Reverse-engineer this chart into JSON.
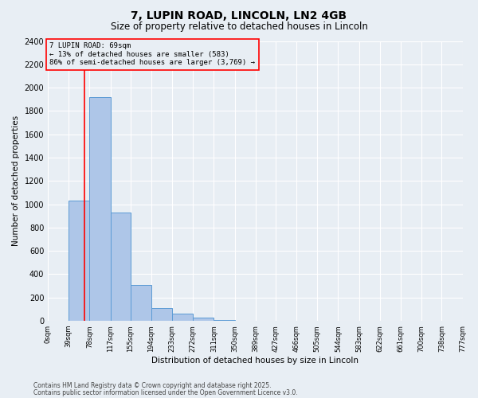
{
  "title": "7, LUPIN ROAD, LINCOLN, LN2 4GB",
  "subtitle": "Size of property relative to detached houses in Lincoln",
  "xlabel": "Distribution of detached houses by size in Lincoln",
  "ylabel": "Number of detached properties",
  "bar_edges": [
    0,
    39,
    78,
    117,
    155,
    194,
    233,
    272,
    311,
    350,
    389,
    427,
    466,
    505,
    544,
    583,
    622,
    661,
    700,
    738,
    777
  ],
  "bar_heights": [
    0,
    1030,
    1920,
    930,
    310,
    110,
    60,
    30,
    10,
    0,
    0,
    0,
    0,
    0,
    0,
    0,
    0,
    0,
    0,
    0
  ],
  "bar_color": "#aec6e8",
  "bar_edge_color": "#5b9bd5",
  "property_line_x": 69,
  "property_line_color": "red",
  "annotation_text": "7 LUPIN ROAD: 69sqm\n← 13% of detached houses are smaller (583)\n86% of semi-detached houses are larger (3,769) →",
  "annotation_box_color": "red",
  "ylim": [
    0,
    2400
  ],
  "background_color": "#e8eef4",
  "grid_color": "white",
  "tick_labels": [
    "0sqm",
    "39sqm",
    "78sqm",
    "117sqm",
    "155sqm",
    "194sqm",
    "233sqm",
    "272sqm",
    "311sqm",
    "350sqm",
    "389sqm",
    "427sqm",
    "466sqm",
    "505sqm",
    "544sqm",
    "583sqm",
    "622sqm",
    "661sqm",
    "700sqm",
    "738sqm",
    "777sqm"
  ],
  "footer_line1": "Contains HM Land Registry data © Crown copyright and database right 2025.",
  "footer_line2": "Contains public sector information licensed under the Open Government Licence v3.0."
}
